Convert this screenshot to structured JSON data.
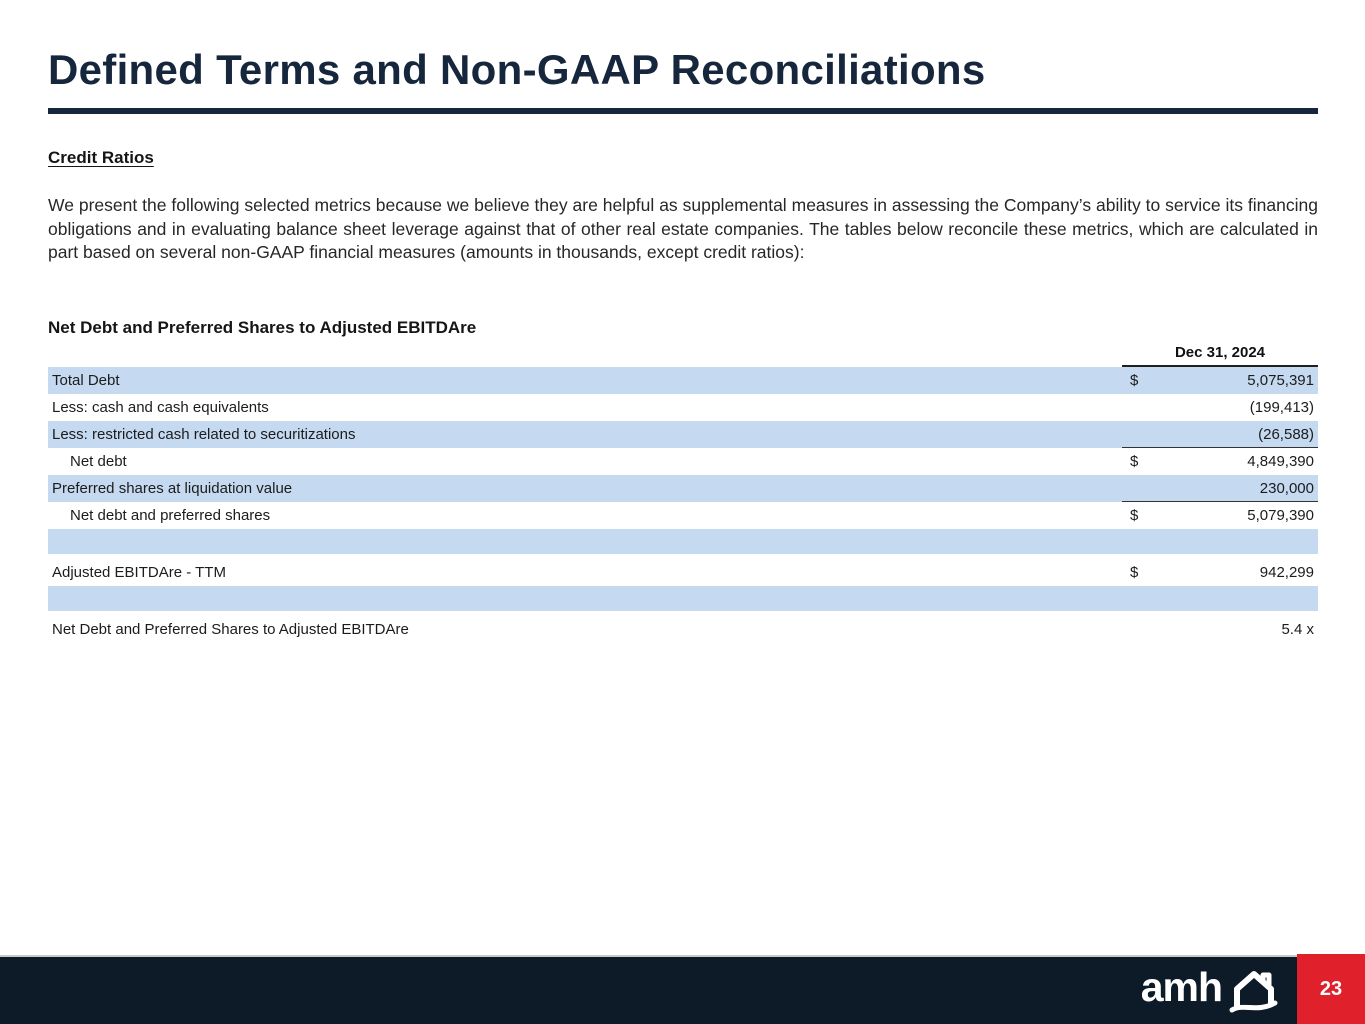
{
  "title": "Defined Terms and Non-GAAP Reconciliations",
  "section": {
    "heading": "Credit Ratios",
    "paragraph": "We present the following selected metrics because we believe they are helpful as supplemental measures in assessing the Company’s ability to service its financing obligations and in evaluating balance sheet leverage against that of other real estate companies. The tables below reconcile these metrics, which are calculated in part based on several non-GAAP financial measures (amounts in thousands, except credit ratios):"
  },
  "table": {
    "title": "Net Debt and Preferred Shares to Adjusted EBITDAre",
    "column_header": "Dec 31, 2024",
    "rows": [
      {
        "type": "data",
        "label": "Total Debt",
        "indent": false,
        "dollar": "$",
        "value": "5,075,391",
        "shaded": true,
        "rule_below": false
      },
      {
        "type": "data",
        "label": "Less: cash and cash equivalents",
        "indent": false,
        "dollar": "",
        "value": "(199,413)",
        "shaded": false,
        "rule_below": false
      },
      {
        "type": "data",
        "label": "Less: restricted cash related to securitizations",
        "indent": false,
        "dollar": "",
        "value": "(26,588)",
        "shaded": true,
        "rule_below": true
      },
      {
        "type": "data",
        "label": "Net debt",
        "indent": true,
        "dollar": "$",
        "value": "4,849,390",
        "shaded": false,
        "rule_below": false
      },
      {
        "type": "data",
        "label": "Preferred shares at liquidation value",
        "indent": false,
        "dollar": "",
        "value": "230,000",
        "shaded": true,
        "rule_below": true
      },
      {
        "type": "data",
        "label": "Net debt and preferred shares",
        "indent": true,
        "dollar": "$",
        "value": "5,079,390",
        "shaded": false,
        "rule_below": false
      },
      {
        "type": "spacer",
        "shaded": true
      },
      {
        "type": "spacer",
        "shaded": false
      },
      {
        "type": "data",
        "label": "Adjusted EBITDAre - TTM",
        "indent": false,
        "dollar": "$",
        "value": "942,299",
        "shaded": false,
        "rule_below": false
      },
      {
        "type": "spacer",
        "shaded": true
      },
      {
        "type": "spacer",
        "shaded": false
      },
      {
        "type": "data",
        "label": "Net Debt and Preferred Shares to Adjusted EBITDAre",
        "indent": false,
        "dollar": "",
        "value": "5.4 x",
        "shaded": false,
        "rule_below": false
      }
    ]
  },
  "footer": {
    "logo_text": "amh",
    "page_number": "23"
  },
  "colors": {
    "accent_navy": "#16263c",
    "row_blue": "#c5d9f0",
    "badge_red": "#e0202a",
    "footer_navy": "#0d1b28"
  }
}
